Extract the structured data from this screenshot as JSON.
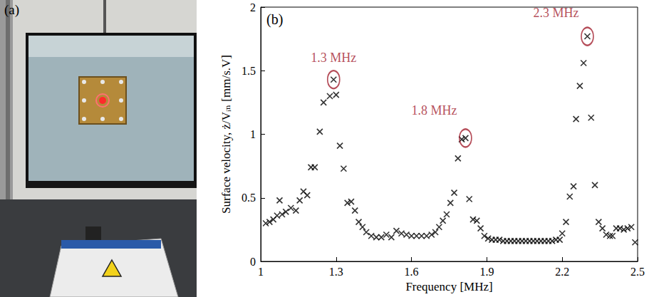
{
  "photo": {
    "label": "(a)"
  },
  "chart_data": {
    "type": "scatter",
    "panel_label": "(b)",
    "x_label": "Frequency [MHz]",
    "y_label": "Surface velocity, ż/Vᵢₙ [mm/s.V]",
    "xlim": [
      1,
      2.5
    ],
    "xticks": [
      1,
      1.3,
      1.6,
      1.9,
      2.2,
      2.5
    ],
    "ylim": [
      0,
      2
    ],
    "yticks": [
      0,
      0.5,
      1,
      1.5,
      2
    ],
    "grid": false,
    "color": "#000000",
    "marker": "x",
    "x": [
      1.02,
      1.035,
      1.05,
      1.065,
      1.075,
      1.085,
      1.1,
      1.12,
      1.14,
      1.155,
      1.17,
      1.185,
      1.2,
      1.215,
      1.235,
      1.25,
      1.275,
      1.29,
      1.3,
      1.315,
      1.33,
      1.345,
      1.36,
      1.375,
      1.39,
      1.405,
      1.42,
      1.44,
      1.46,
      1.48,
      1.5,
      1.52,
      1.54,
      1.56,
      1.58,
      1.6,
      1.62,
      1.64,
      1.66,
      1.68,
      1.695,
      1.71,
      1.725,
      1.74,
      1.755,
      1.77,
      1.785,
      1.8,
      1.815,
      1.83,
      1.845,
      1.86,
      1.875,
      1.89,
      1.905,
      1.92,
      1.935,
      1.95,
      1.965,
      1.98,
      1.995,
      2.01,
      2.025,
      2.04,
      2.055,
      2.07,
      2.085,
      2.1,
      2.115,
      2.13,
      2.145,
      2.16,
      2.175,
      2.19,
      2.2,
      2.215,
      2.23,
      2.245,
      2.255,
      2.27,
      2.285,
      2.3,
      2.315,
      2.33,
      2.345,
      2.36,
      2.375,
      2.39,
      2.4,
      2.415,
      2.43,
      2.445,
      2.46,
      2.475,
      2.49
    ],
    "values": [
      0.3,
      0.31,
      0.33,
      0.36,
      0.48,
      0.37,
      0.39,
      0.42,
      0.4,
      0.48,
      0.55,
      0.52,
      0.74,
      0.74,
      1.02,
      1.25,
      1.3,
      1.43,
      1.31,
      0.91,
      0.73,
      0.46,
      0.47,
      0.4,
      0.31,
      0.27,
      0.23,
      0.2,
      0.19,
      0.19,
      0.21,
      0.19,
      0.24,
      0.22,
      0.21,
      0.2,
      0.2,
      0.2,
      0.2,
      0.21,
      0.23,
      0.27,
      0.32,
      0.37,
      0.46,
      0.54,
      0.81,
      0.96,
      0.97,
      0.49,
      0.33,
      0.32,
      0.26,
      0.2,
      0.18,
      0.17,
      0.17,
      0.17,
      0.16,
      0.16,
      0.16,
      0.16,
      0.16,
      0.16,
      0.16,
      0.16,
      0.16,
      0.16,
      0.16,
      0.16,
      0.16,
      0.16,
      0.17,
      0.17,
      0.22,
      0.31,
      0.51,
      0.59,
      1.12,
      1.38,
      1.56,
      1.77,
      1.13,
      0.6,
      0.31,
      0.26,
      0.21,
      0.2,
      0.2,
      0.26,
      0.26,
      0.25,
      0.26,
      0.27,
      0.15
    ],
    "annotations": [
      {
        "text": "1.3 MHz",
        "x": 1.29,
        "y": 1.43,
        "color": "#a3212f"
      },
      {
        "text": "1.8 MHz",
        "x": 1.815,
        "y": 0.97,
        "color": "#a3212f"
      },
      {
        "text": "2.3 MHz",
        "x": 2.3,
        "y": 1.77,
        "color": "#a3212f"
      }
    ]
  }
}
